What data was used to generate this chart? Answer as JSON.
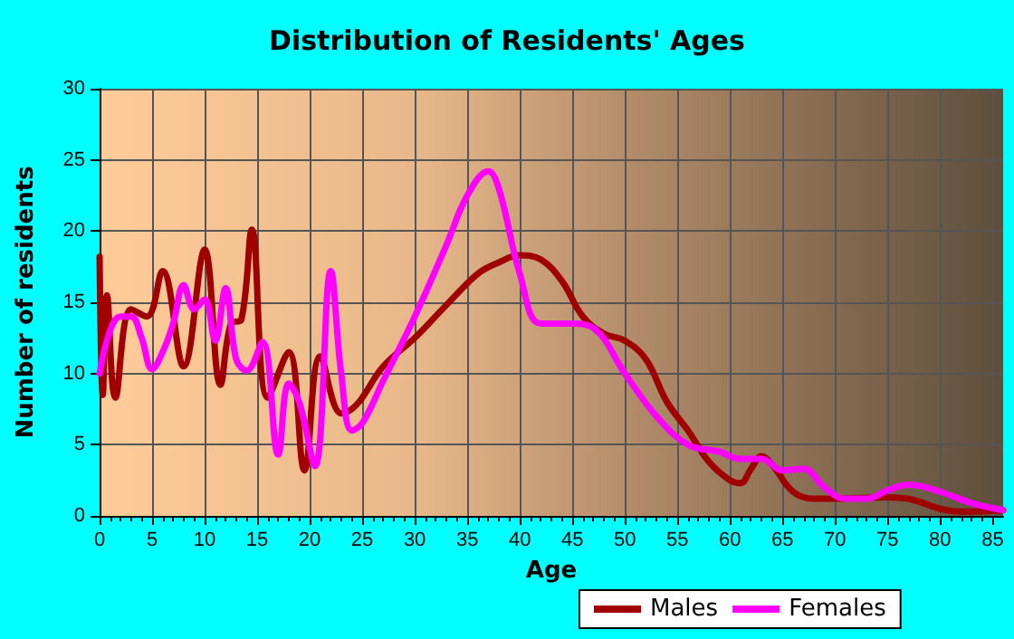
{
  "chart_data": {
    "type": "line",
    "title": "Distribution of Residents' Ages",
    "xlabel": "Age",
    "ylabel": "Number of residents",
    "xlim": [
      0,
      86
    ],
    "xticks": [
      0,
      5,
      10,
      15,
      20,
      25,
      30,
      35,
      40,
      45,
      50,
      55,
      60,
      65,
      70,
      75,
      80,
      85
    ],
    "ylim": [
      0,
      30
    ],
    "yticks": [
      0,
      5,
      10,
      15,
      20,
      25,
      30
    ],
    "grid": true,
    "legend": "bottom",
    "marker": "none",
    "line_style": "solid",
    "series": [
      {
        "name": "Males",
        "color": "#a00000",
        "x": [
          0,
          0.3,
          0.7,
          1.5,
          3,
          4.5,
          6,
          8,
          10,
          11.5,
          12.5,
          13.5,
          14.5,
          16,
          18,
          19.5,
          21,
          23,
          24,
          25,
          27,
          30,
          33,
          36,
          38,
          40,
          42,
          44,
          46,
          48,
          50,
          52,
          54,
          56,
          58,
          60,
          61,
          62,
          63,
          64,
          66,
          68,
          70,
          75,
          77,
          80,
          82,
          86
        ],
        "values": [
          18.2,
          8.5,
          15.5,
          8.3,
          14.5,
          14,
          17.2,
          10.5,
          18.7,
          9.2,
          13.5,
          13.8,
          20.1,
          8.3,
          11.5,
          3.2,
          11.2,
          7.2,
          7.5,
          8.3,
          10.5,
          12.5,
          14.8,
          17,
          17.8,
          18.3,
          18,
          16.5,
          14,
          12.8,
          12.3,
          11,
          8,
          6,
          3.8,
          2.5,
          2.3,
          3.3,
          4.2,
          3.6,
          1.7,
          1.2,
          1.2,
          1.3,
          1.2,
          0.5,
          0.3,
          0.4
        ]
      },
      {
        "name": "Females",
        "color": "#ff00ff",
        "x": [
          0,
          1,
          2,
          3,
          4,
          5,
          6,
          7,
          8,
          9,
          10,
          11,
          12,
          13,
          14,
          15.5,
          17,
          18,
          19,
          20.5,
          22,
          23,
          24,
          25,
          27,
          30,
          33,
          35,
          37,
          38,
          40,
          42,
          45,
          47,
          50,
          53,
          56,
          59,
          61,
          63,
          65,
          67,
          69,
          71,
          73,
          75,
          77,
          80,
          83,
          86
        ],
        "values": [
          10,
          13,
          14,
          14,
          12.5,
          10.3,
          11.5,
          13.5,
          16.2,
          14.5,
          15.2,
          12.3,
          16,
          11,
          10.2,
          12.2,
          4.3,
          9.3,
          8,
          3.5,
          17.2,
          10,
          6,
          6.5,
          9.5,
          14,
          19,
          22.5,
          24.2,
          23,
          17,
          13.5,
          13.5,
          13.2,
          10,
          7,
          5,
          4.5,
          4,
          4,
          3.2,
          3.3,
          2,
          1.2,
          1.2,
          1.8,
          2.2,
          1.7,
          0.9,
          0.4
        ]
      }
    ]
  }
}
